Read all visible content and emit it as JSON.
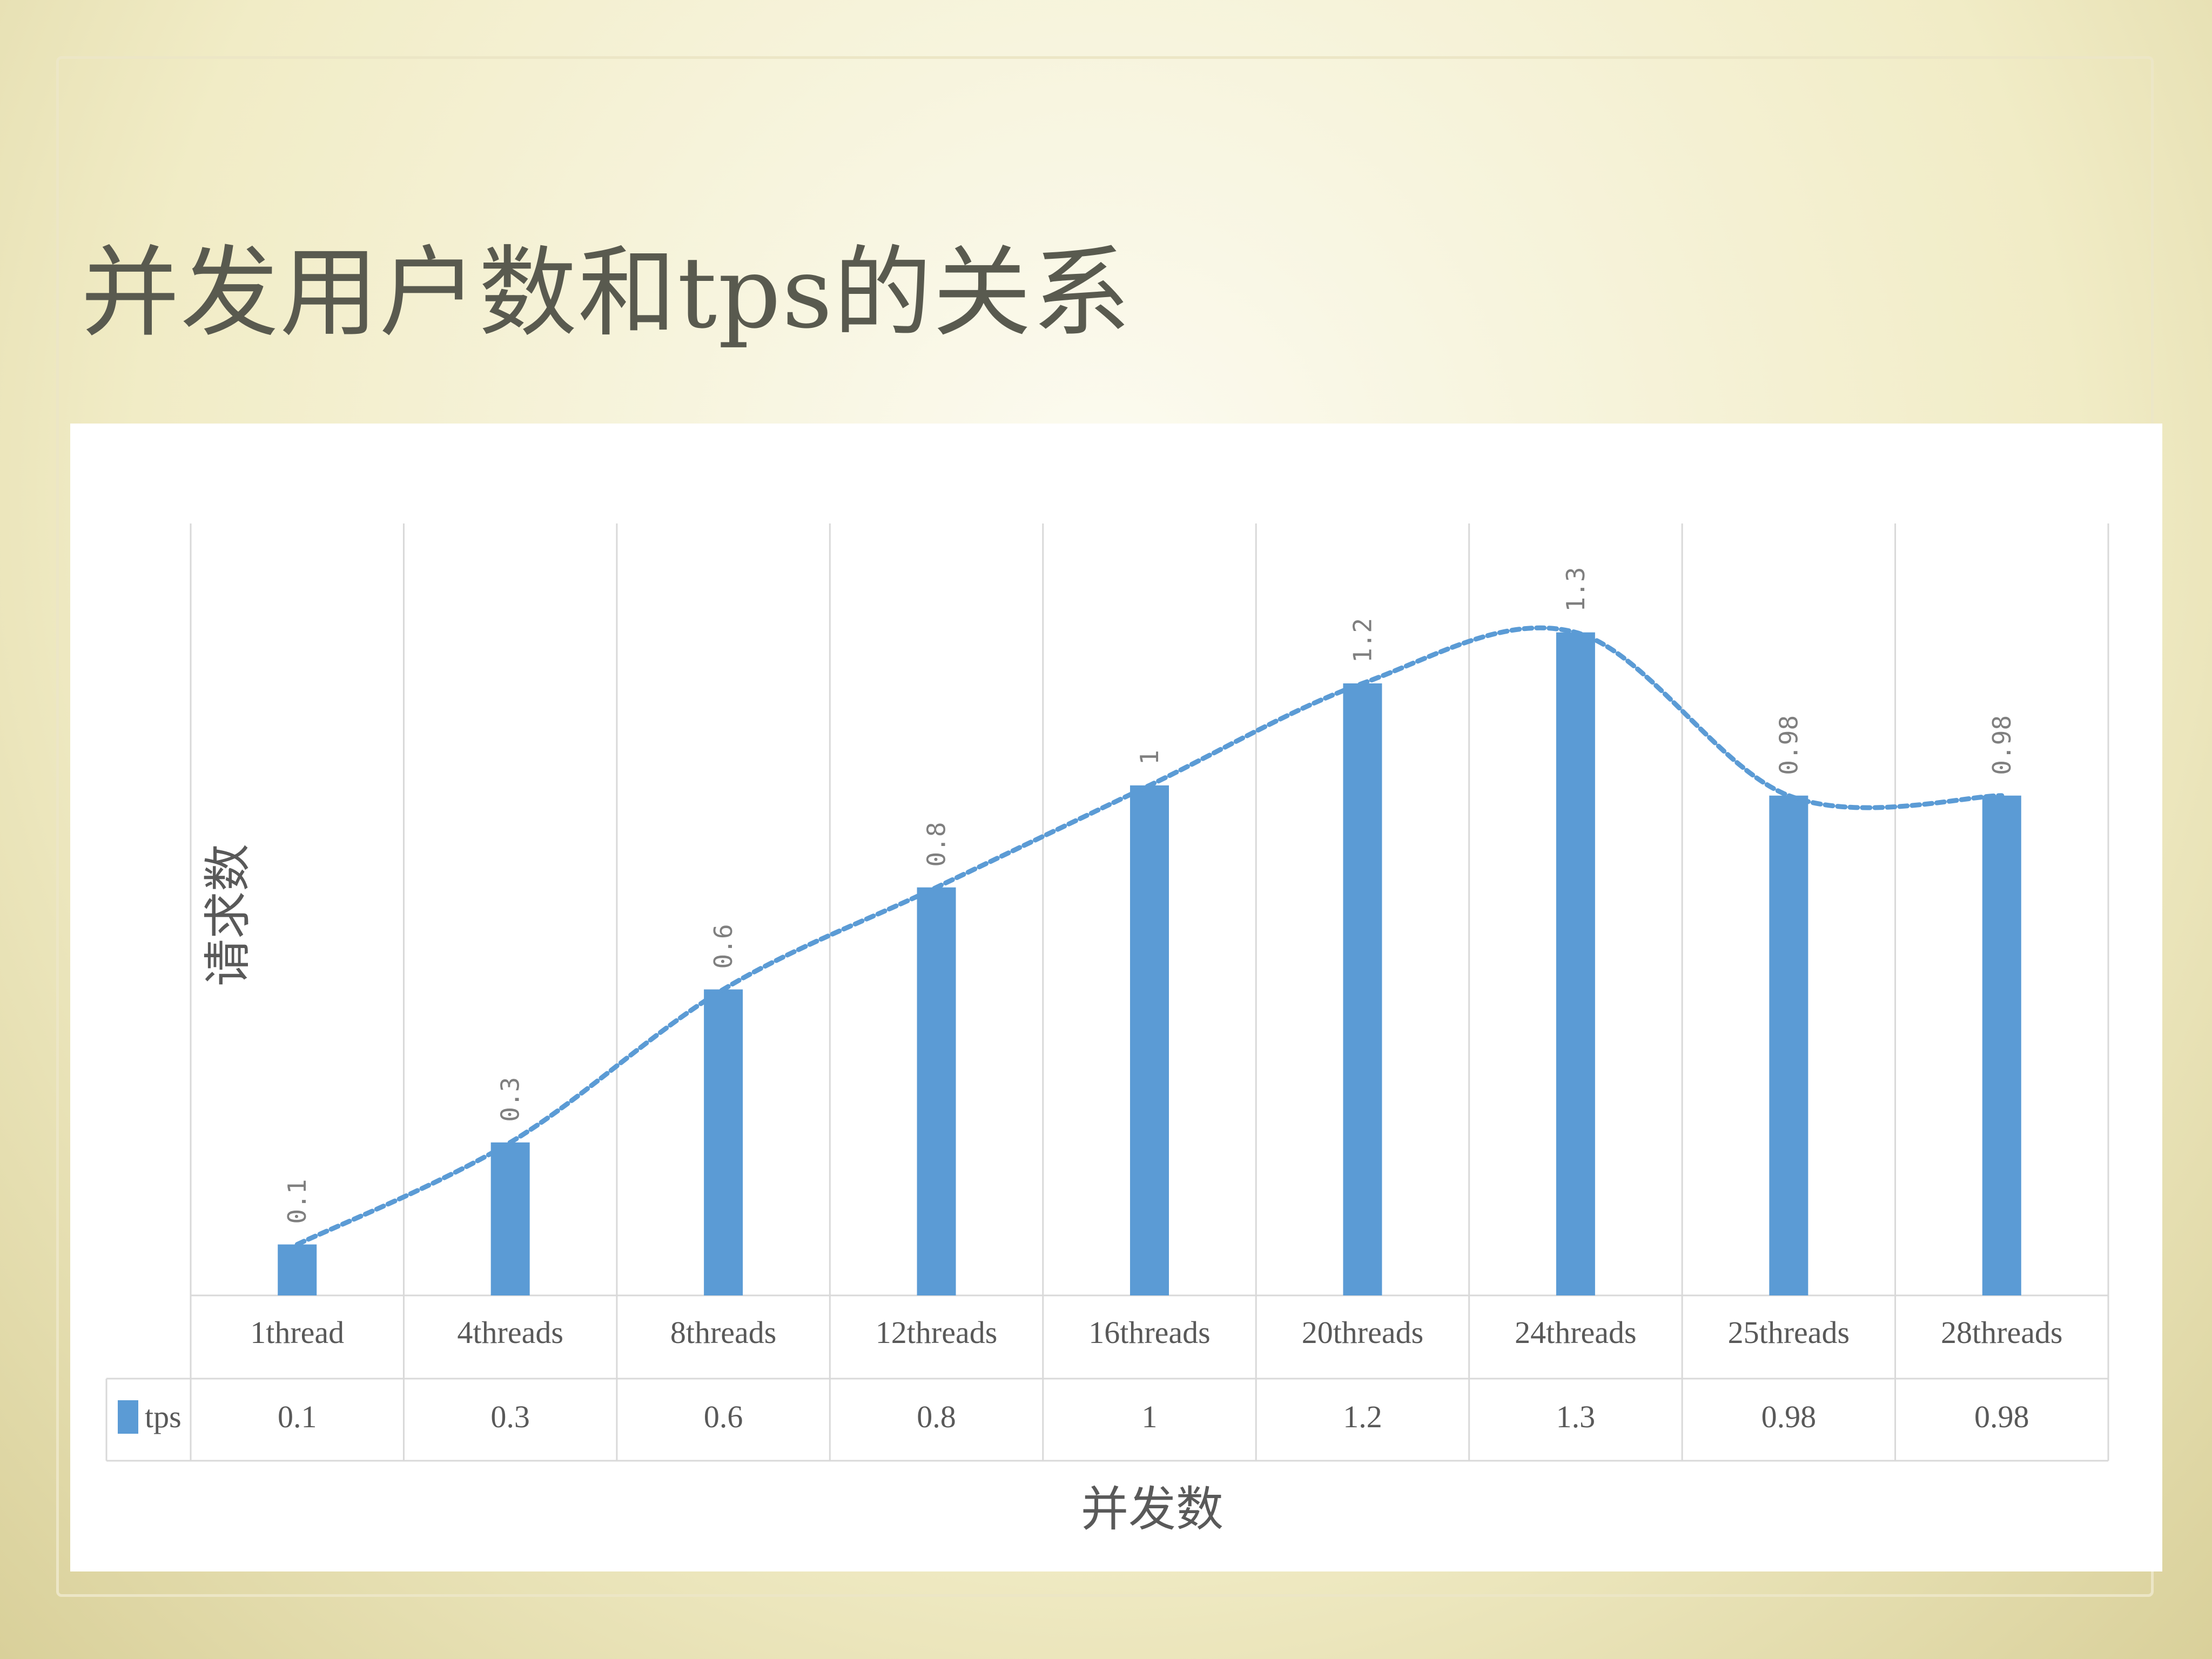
{
  "slide": {
    "title": "并发用户数和tps的关系"
  },
  "chart_data": {
    "type": "bar",
    "categories": [
      "1thread",
      "4threads",
      "8threads",
      "12threads",
      "16threads",
      "20threads",
      "24threads",
      "25threads",
      "28threads"
    ],
    "series": [
      {
        "name": "tps",
        "values": [
          0.1,
          0.3,
          0.6,
          0.8,
          1,
          1.2,
          1.3,
          0.98,
          0.98
        ],
        "labels": [
          "0.1",
          "0.3",
          "0.6",
          "0.8",
          "1",
          "1.2",
          "1.3",
          "0.98",
          "0.98"
        ],
        "color": "#5b9bd5"
      }
    ],
    "xlabel": "并发数",
    "ylabel": "请求数",
    "ylim": [
      0,
      1.4
    ],
    "trendline": "smoothed, dashed",
    "data_table": true,
    "data_labels": "rotated above bars",
    "grid": "vertical gridlines"
  }
}
